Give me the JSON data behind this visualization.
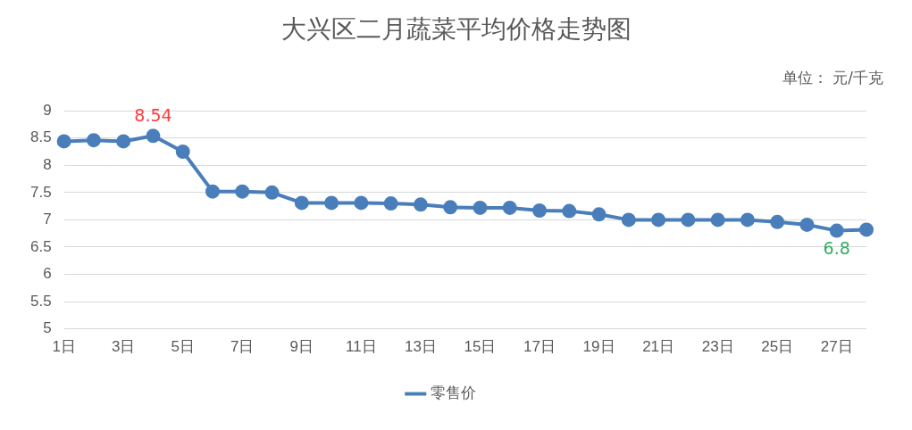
{
  "chart_data": {
    "type": "line",
    "title": "大兴区二月蔬菜平均价格走势图",
    "subtitle": "单位： 元/千克",
    "categories": [
      "1日",
      null,
      "3日",
      null,
      "5日",
      null,
      "7日",
      null,
      "9日",
      null,
      "11日",
      null,
      "13日",
      null,
      "15日",
      null,
      "17日",
      null,
      "19日",
      null,
      "21日",
      null,
      "23日",
      null,
      "25日",
      null,
      "27日",
      null
    ],
    "series": [
      {
        "name": "零售价",
        "color": "#4a7ebb",
        "values": [
          8.44,
          8.46,
          8.44,
          8.54,
          8.25,
          7.52,
          7.52,
          7.5,
          7.31,
          7.31,
          7.31,
          7.3,
          7.28,
          7.23,
          7.22,
          7.22,
          7.17,
          7.16,
          7.1,
          7.0,
          7.0,
          7.0,
          7.0,
          7.0,
          6.96,
          6.91,
          6.8,
          6.82
        ],
        "value_labels": [
          null,
          null,
          null,
          "8.54",
          null,
          null,
          null,
          null,
          null,
          null,
          null,
          null,
          null,
          null,
          null,
          null,
          null,
          null,
          null,
          null,
          null,
          null,
          null,
          null,
          null,
          null,
          "6.8",
          null
        ]
      }
    ],
    "ylim": [
      5,
      9
    ],
    "yticks": [
      5,
      5.5,
      6,
      6.5,
      7,
      7.5,
      8,
      8.5,
      9
    ],
    "grid": "y",
    "legend": "bottom",
    "marker": "circle",
    "line_style": "solid"
  }
}
